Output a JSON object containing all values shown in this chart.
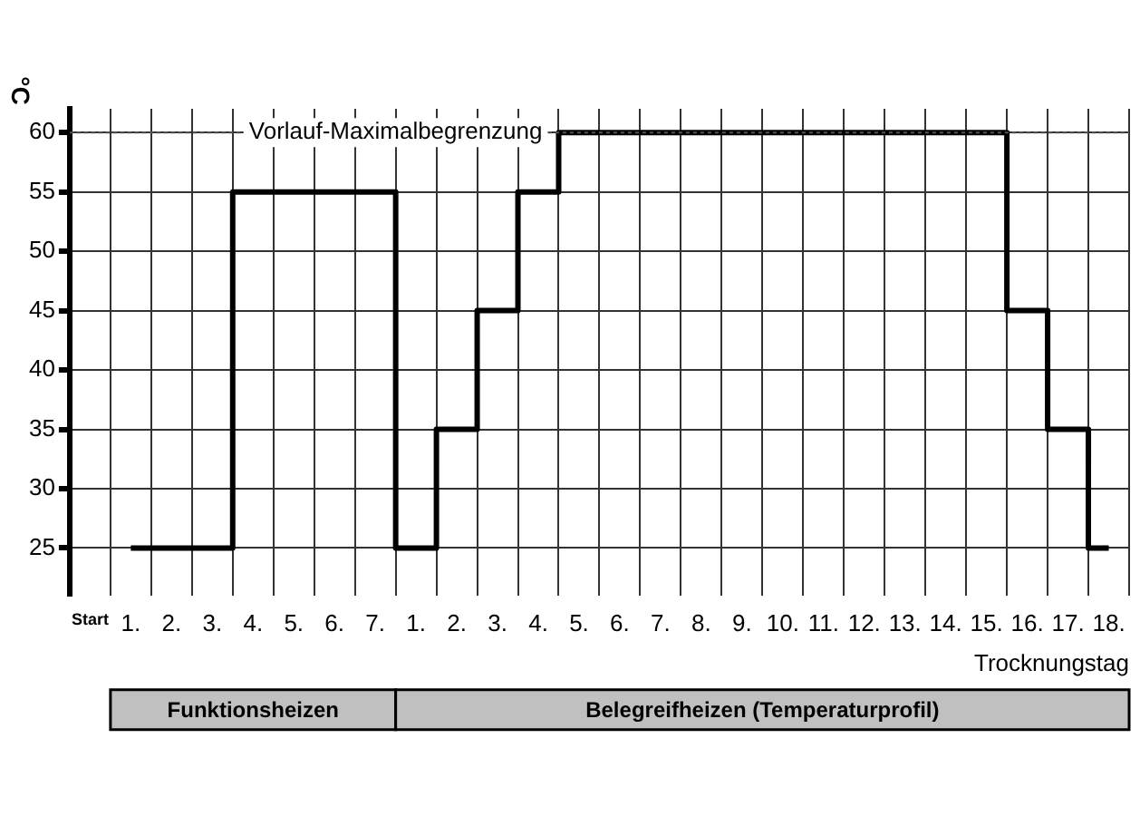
{
  "chart_data": {
    "type": "step",
    "ylabel": "°C",
    "xlabel": "Trocknungstag",
    "categories": [
      "Start",
      "1.",
      "2.",
      "3.",
      "4.",
      "5.",
      "6.",
      "7.",
      "1.",
      "2.",
      "3.",
      "4.",
      "5.",
      "6.",
      "7.",
      "8.",
      "9.",
      "10.",
      "11.",
      "12.",
      "13.",
      "14.",
      "15.",
      "16.",
      "17.",
      "18."
    ],
    "series": [
      {
        "color": "#000000",
        "values": [
          null,
          25,
          25,
          25,
          55,
          55,
          55,
          55,
          25,
          35,
          45,
          55,
          60,
          60,
          60,
          60,
          60,
          60,
          60,
          60,
          60,
          60,
          60,
          45,
          35,
          25
        ]
      }
    ],
    "ylim": [
      21,
      62
    ],
    "yticks": [
      25,
      30,
      35,
      40,
      45,
      50,
      55,
      60
    ],
    "ref_lines": [
      {
        "axis": "y",
        "value": 60,
        "label": "Vorlauf-Maximalbegrenzung",
        "color": "#555555",
        "line_style": "dotted"
      }
    ],
    "annotations": [
      "Funktionsheizen",
      "Belegreifheizen (Temperaturprofil)"
    ],
    "grid": true,
    "legend": false,
    "marker": "none",
    "line_style": "solid"
  }
}
